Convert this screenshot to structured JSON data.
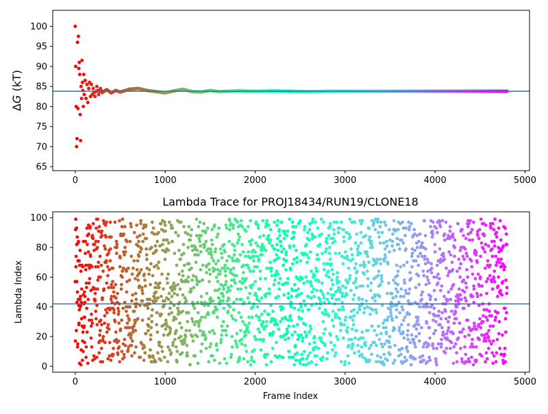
{
  "chart_data": [
    {
      "type": "scatter",
      "title": "",
      "xlabel": "",
      "ylabel": "ΔG (kT)",
      "ylabel_prefix": "Δ",
      "ylabel_symbol": "G",
      "ylabel_unit": " (kT)",
      "xlim": [
        -250,
        5050
      ],
      "ylim": [
        64,
        104
      ],
      "xticks": [
        0,
        1000,
        2000,
        3000,
        4000,
        5000
      ],
      "yticks": [
        65,
        70,
        75,
        80,
        85,
        90,
        95,
        100
      ],
      "xtick_labels": [
        "0",
        "1000",
        "2000",
        "3000",
        "4000",
        "5000"
      ],
      "ytick_labels": [
        "65",
        "70",
        "75",
        "80",
        "85",
        "90",
        "95",
        "100"
      ],
      "colormap": "rainbow",
      "frame_range": [
        0,
        4800
      ],
      "reference_line": {
        "y": 83.8,
        "color": "#1f77b4"
      },
      "grid": false,
      "series": [
        {
          "points": [
            [
              0,
              100
            ],
            [
              5,
              90
            ],
            [
              10,
              80
            ],
            [
              15,
              70
            ],
            [
              20,
              72
            ],
            [
              25,
              96
            ],
            [
              30,
              79.5
            ],
            [
              35,
              97.5
            ],
            [
              40,
              89.5
            ],
            [
              45,
              91
            ],
            [
              50,
              88
            ],
            [
              55,
              78
            ],
            [
              60,
              71.5
            ],
            [
              65,
              85
            ],
            [
              70,
              82
            ],
            [
              75,
              91.5
            ],
            [
              80,
              86
            ],
            [
              85,
              84
            ],
            [
              90,
              80
            ],
            [
              95,
              88
            ],
            [
              100,
              83
            ],
            [
              110,
              86.5
            ],
            [
              120,
              82
            ],
            [
              130,
              85.5
            ],
            [
              140,
              81
            ],
            [
              150,
              84.5
            ],
            [
              160,
              86
            ],
            [
              170,
              82.5
            ],
            [
              180,
              85.5
            ],
            [
              190,
              83
            ],
            [
              200,
              84.5
            ],
            [
              220,
              82.5
            ],
            [
              240,
              85
            ],
            [
              260,
              83
            ],
            [
              280,
              84.5
            ],
            [
              300,
              83.5
            ],
            [
              350,
              84.2
            ],
            [
              400,
              83.4
            ],
            [
              450,
              84
            ],
            [
              500,
              83.6
            ],
            [
              600,
              84.3
            ],
            [
              700,
              84.5
            ],
            [
              800,
              84
            ],
            [
              900,
              83.7
            ],
            [
              1000,
              83.4
            ],
            [
              1100,
              83.9
            ],
            [
              1200,
              84.3
            ],
            [
              1300,
              83.7
            ],
            [
              1400,
              83.6
            ],
            [
              1500,
              84
            ],
            [
              1600,
              83.7
            ],
            [
              1800,
              83.9
            ],
            [
              2000,
              83.8
            ],
            [
              2200,
              83.9
            ],
            [
              2400,
              83.8
            ],
            [
              2600,
              83.7
            ],
            [
              2800,
              83.8
            ],
            [
              3000,
              83.8
            ],
            [
              3200,
              83.8
            ],
            [
              3400,
              83.8
            ],
            [
              3600,
              83.8
            ],
            [
              3800,
              83.8
            ],
            [
              4000,
              83.8
            ],
            [
              4200,
              83.8
            ],
            [
              4400,
              83.8
            ],
            [
              4600,
              83.8
            ],
            [
              4800,
              83.8
            ]
          ]
        }
      ]
    },
    {
      "type": "scatter",
      "title": "Lambda Trace for PROJ18434/RUN19/CLONE18",
      "xlabel": "Frame Index",
      "ylabel": "Lambda Index",
      "xlim": [
        -250,
        5050
      ],
      "ylim": [
        -4,
        104
      ],
      "xticks": [
        0,
        1000,
        2000,
        3000,
        4000,
        5000
      ],
      "yticks": [
        0,
        20,
        40,
        60,
        80,
        100
      ],
      "xtick_labels": [
        "0",
        "1000",
        "2000",
        "3000",
        "4000",
        "5000"
      ],
      "ytick_labels": [
        "0",
        "20",
        "40",
        "60",
        "80",
        "100"
      ],
      "colormap": "rainbow",
      "frame_range": [
        0,
        4800
      ],
      "frame_step": 2,
      "lambda_range": [
        1,
        99
      ],
      "reference_line": {
        "y": 42,
        "color": "#1f77b4"
      },
      "grid": false
    }
  ]
}
